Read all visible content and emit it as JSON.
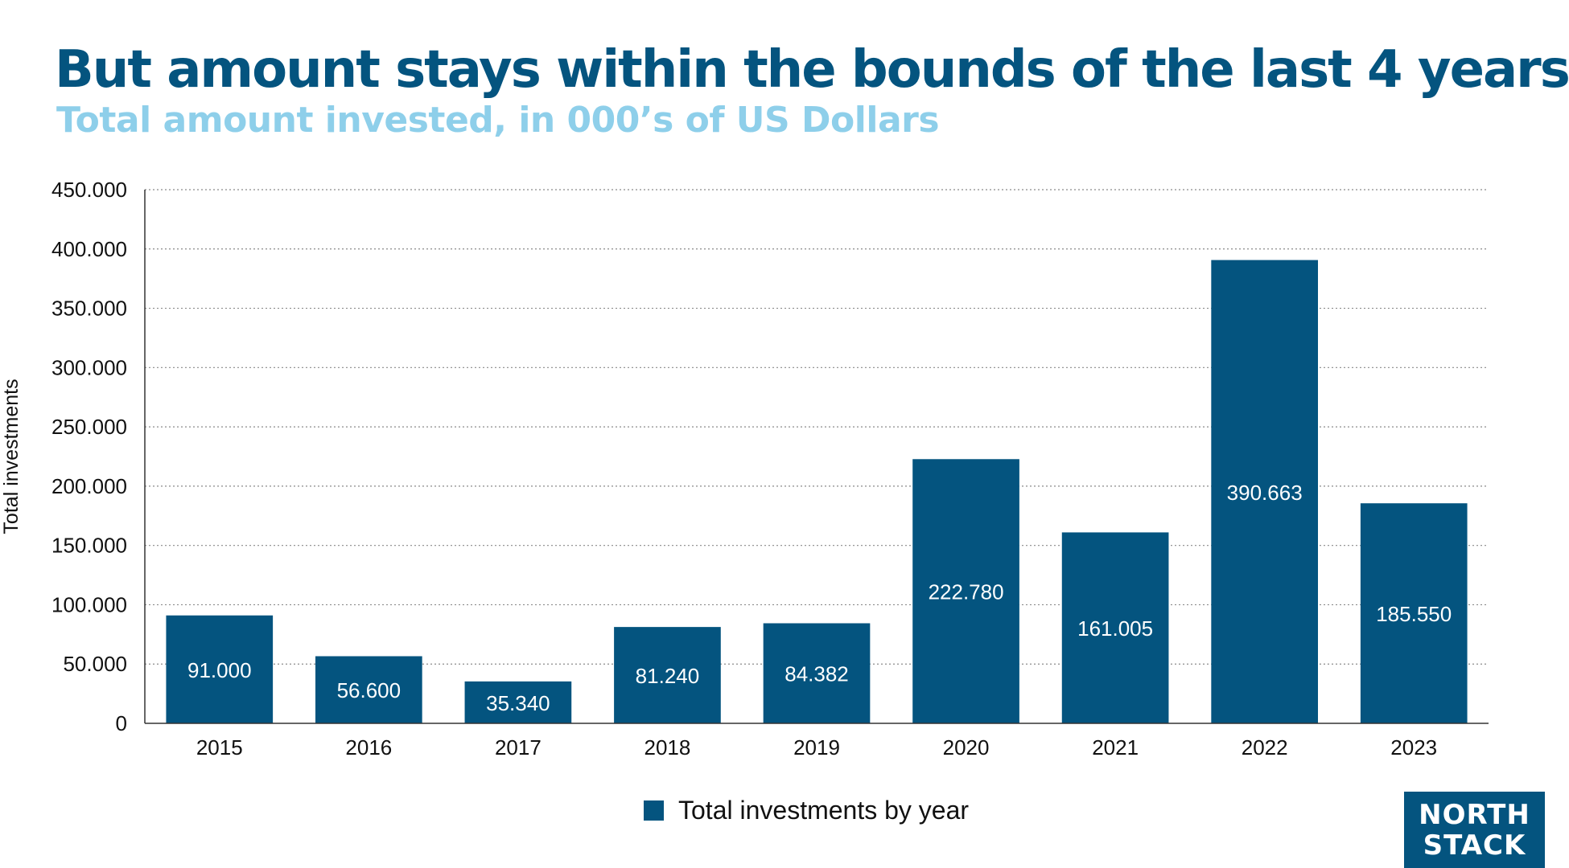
{
  "colors": {
    "bar": "#04547f",
    "title": "#04547f",
    "subtitle": "#8ecfea",
    "grid": "#8a8a8a",
    "axis": "#333333",
    "text": "#111111"
  },
  "header": {
    "title": "But amount stays within the bounds of the last 4 years",
    "subtitle": "Total amount invested, in 000’s of US Dollars"
  },
  "legend": {
    "label": "Total investments by year",
    "icon": "square-swatch-icon"
  },
  "logo": {
    "line1": "NORTH",
    "line2": "STACK",
    "icon": "north-arrow-icon"
  },
  "chart_data": {
    "type": "bar",
    "title": "But amount stays within the bounds of the last 4 years",
    "subtitle": "Total amount invested, in 000’s of US Dollars",
    "xlabel": "",
    "ylabel": "Total investments",
    "categories": [
      "2015",
      "2016",
      "2017",
      "2018",
      "2019",
      "2020",
      "2021",
      "2022",
      "2023"
    ],
    "series": [
      {
        "name": "Total investments by year",
        "values": [
          91000,
          56600,
          35340,
          81240,
          84382,
          222780,
          161005,
          390663,
          185550
        ],
        "labels": [
          "91.000",
          "56.600",
          "35.340",
          "81.240",
          "84.382",
          "222.780",
          "161.005",
          "390.663",
          "185.550"
        ]
      }
    ],
    "ylim": [
      0,
      450000
    ],
    "yticks": [
      0,
      50000,
      100000,
      150000,
      200000,
      250000,
      300000,
      350000,
      400000,
      450000
    ],
    "ytick_labels": [
      "0",
      "50.000",
      "100.000",
      "150.000",
      "200.000",
      "250.000",
      "300.000",
      "350.000",
      "400.000",
      "450.000"
    ],
    "grid": true,
    "legend_position": "bottom-center"
  }
}
